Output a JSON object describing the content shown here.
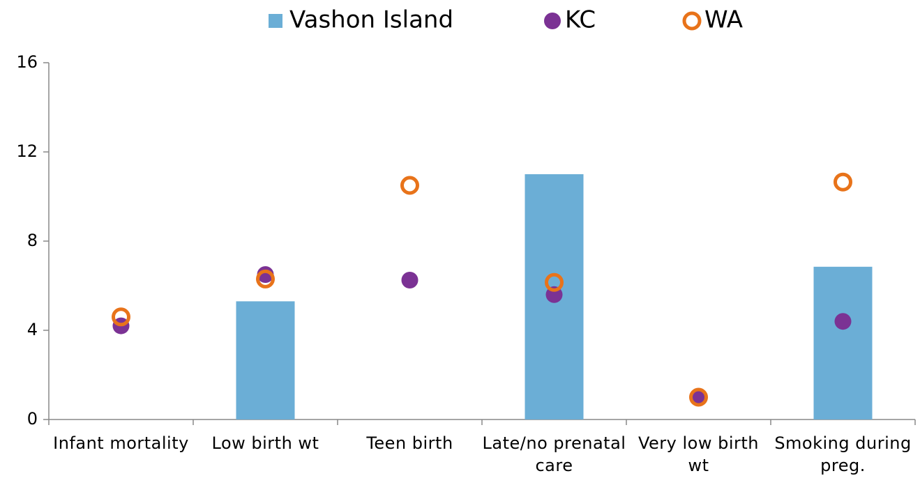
{
  "chart_data": {
    "type": "bar",
    "categories": [
      "Infant mortality",
      "Low birth wt",
      "Teen birth",
      "Late/no prenatal care",
      "Very low birth wt",
      "Smoking during preg."
    ],
    "series": [
      {
        "name": "Vashon Island",
        "color": "#6baed6",
        "type": "bar",
        "values": [
          null,
          5.3,
          null,
          11.0,
          null,
          6.85
        ]
      },
      {
        "name": "KC",
        "color": "#7b3294",
        "type": "dot",
        "values": [
          4.2,
          6.5,
          6.25,
          5.6,
          1.0,
          4.4
        ]
      },
      {
        "name": "WA",
        "color": "#e8731a",
        "type": "ring",
        "values": [
          4.6,
          6.3,
          10.5,
          6.15,
          1.0,
          10.65
        ]
      }
    ],
    "ylim": [
      0,
      16
    ],
    "yticks": [
      0,
      4,
      8,
      12,
      16
    ],
    "grid": false,
    "legend": "top"
  }
}
